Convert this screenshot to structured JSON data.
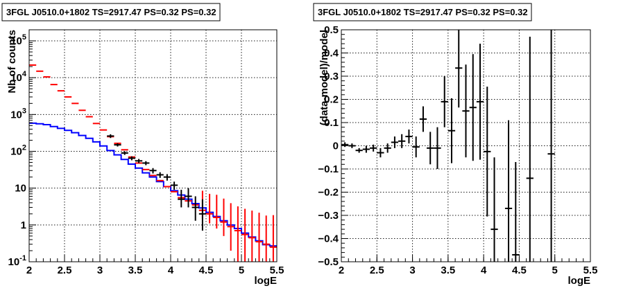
{
  "chart_data": [
    {
      "type": "line",
      "title": "3FGL J0510.0+1802 TS=2917.47 PS=0.32 PS=0.32",
      "xlabel": "logE",
      "ylabel": "Nb of counts",
      "xlim": [
        2,
        5.5
      ],
      "ylim": [
        0.1,
        200000
      ],
      "yscale": "log",
      "grid": true,
      "x_ticks": [
        "2",
        "2.5",
        "3",
        "3.5",
        "4",
        "4.5",
        "5",
        "5.5"
      ],
      "y_ticks": [
        {
          "value": 0.1,
          "label": "10",
          "sup": "-1"
        },
        {
          "value": 1,
          "label": "1",
          "sup": ""
        },
        {
          "value": 10,
          "label": "10",
          "sup": ""
        },
        {
          "value": 100,
          "label": "10",
          "sup": "2"
        },
        {
          "value": 1000,
          "label": "10",
          "sup": "3"
        },
        {
          "value": 10000,
          "label": "10",
          "sup": "4"
        },
        {
          "value": 100000,
          "label": "10",
          "sup": "5"
        }
      ],
      "bin_width": 0.1,
      "series": [
        {
          "color": "#0000ff",
          "style": "histogram",
          "x": [
            2.05,
            2.15,
            2.25,
            2.35,
            2.45,
            2.55,
            2.65,
            2.75,
            2.85,
            2.95,
            3.05,
            3.15,
            3.25,
            3.35,
            3.45,
            3.55,
            3.65,
            3.75,
            3.85,
            3.95,
            4.05,
            4.15,
            4.25,
            4.35,
            4.45,
            4.55,
            4.65,
            4.75,
            4.85,
            4.95,
            5.05,
            5.15,
            5.25,
            5.35,
            5.45
          ],
          "values": [
            580,
            560,
            530,
            470,
            420,
            370,
            320,
            270,
            225,
            180,
            140,
            105,
            80,
            60,
            45,
            35,
            26,
            20,
            15,
            11,
            8.5,
            6.5,
            5,
            3.8,
            2.9,
            2.2,
            1.7,
            1.3,
            1.0,
            0.8,
            0.6,
            0.47,
            0.37,
            0.29,
            0.27
          ]
        },
        {
          "color": "#ff0000",
          "style": "errorbar",
          "x": [
            2.05,
            2.15,
            2.25,
            2.35,
            2.45,
            2.55,
            2.65,
            2.75,
            2.85,
            2.95,
            3.05,
            3.15,
            3.25,
            3.35,
            3.45,
            3.55,
            3.65,
            3.75,
            3.85,
            3.95,
            4.05,
            4.15,
            4.25,
            4.35,
            4.45,
            4.55,
            4.65,
            4.75,
            4.85,
            4.95,
            5.05,
            5.15,
            5.25,
            5.35,
            5.45
          ],
          "values": [
            22000,
            15000,
            10500,
            6500,
            4400,
            3000,
            2000,
            1300,
            870,
            570,
            380,
            250,
            165,
            110,
            70,
            48,
            32,
            22,
            16,
            11,
            8,
            5.5,
            4.5,
            3.5,
            2.5,
            2.0,
            1.6,
            1.2,
            0.9,
            0.7,
            0.55,
            0.45,
            0.35,
            0.3,
            0.25
          ],
          "err_low": [
            0,
            0,
            0,
            0,
            0,
            0,
            0,
            0,
            0,
            0,
            0,
            0,
            0,
            0,
            0,
            0,
            0,
            0,
            0,
            0,
            0,
            0,
            0,
            0,
            1.0,
            0.9,
            0.8,
            0.7,
            0.7,
            0.6,
            0.5,
            0.4,
            0.3,
            0.28,
            0.23
          ],
          "err_high": [
            0,
            0,
            0,
            0,
            0,
            0,
            0,
            0,
            0,
            0,
            0,
            0,
            0,
            0,
            0,
            0,
            0,
            0,
            0,
            0,
            0,
            0,
            0,
            0,
            6,
            5,
            5,
            4,
            3,
            2.5,
            2.2,
            2.0,
            1.8,
            1.5,
            1.6
          ]
        },
        {
          "color": "#000000",
          "style": "errorbar",
          "x": [
            3.15,
            3.25,
            3.35,
            3.45,
            3.55,
            3.65,
            3.75,
            3.85,
            3.95,
            4.05,
            4.15,
            4.25,
            4.35,
            4.45
          ],
          "values": [
            260,
            150,
            90,
            65,
            55,
            48,
            30,
            23,
            20,
            12,
            5,
            6,
            3,
            2
          ],
          "err_low": [
            30,
            15,
            10,
            8,
            7,
            6,
            5,
            4,
            4,
            3,
            2,
            3,
            1.7,
            1.3
          ],
          "err_high": [
            30,
            15,
            10,
            8,
            7,
            6,
            5,
            4,
            4,
            3,
            4,
            4,
            3,
            3
          ]
        }
      ]
    },
    {
      "type": "scatter",
      "title": "3FGL J0510.0+1802 TS=2917.47 PS=0.32 PS=0.32",
      "xlabel": "logE",
      "ylabel": "(data-model)/model",
      "xlim": [
        2,
        5.5
      ],
      "ylim": [
        -0.5,
        0.5
      ],
      "grid": true,
      "x_ticks": [
        "2",
        "2.5",
        "3",
        "3.5",
        "4",
        "4.5",
        "5",
        "5.5"
      ],
      "y_ticks": [
        "−0.5",
        "−0.4",
        "−0.3",
        "−0.2",
        "−0.1",
        "0",
        "0.1",
        "0.2",
        "0.3",
        "0.4",
        "0.5"
      ],
      "bin_width": 0.1,
      "series": [
        {
          "color": "#000000",
          "style": "errorbar",
          "x": [
            2.05,
            2.15,
            2.25,
            2.35,
            2.45,
            2.55,
            2.65,
            2.75,
            2.85,
            2.95,
            3.05,
            3.15,
            3.25,
            3.35,
            3.45,
            3.55,
            3.65,
            3.75,
            3.85,
            3.95,
            4.05,
            4.15,
            4.35,
            4.45,
            4.65,
            4.95
          ],
          "values": [
            0.005,
            0.0,
            -0.02,
            -0.015,
            -0.01,
            -0.03,
            -0.01,
            0.015,
            0.02,
            0.04,
            -0.005,
            0.115,
            -0.01,
            -0.01,
            0.19,
            0.065,
            0.335,
            0.15,
            0.165,
            0.19,
            -0.025,
            -0.36,
            -0.27,
            -0.47,
            -0.14,
            -0.035
          ],
          "err": [
            0.01,
            0.01,
            0.01,
            0.015,
            0.015,
            0.02,
            0.02,
            0.025,
            0.03,
            0.03,
            0.045,
            0.055,
            0.07,
            0.09,
            0.11,
            0.14,
            0.17,
            0.2,
            0.23,
            0.25,
            0.28,
            0.31,
            0.38,
            0.4,
            0.61,
            0.55
          ]
        }
      ]
    }
  ]
}
